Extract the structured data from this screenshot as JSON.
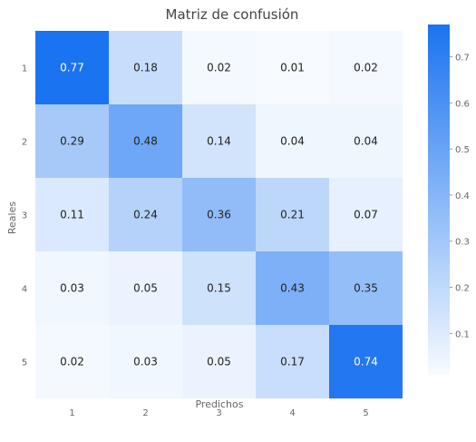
{
  "chart_data": {
    "type": "heatmap",
    "title": "Matriz de confusión",
    "xlabel": "Predichos",
    "ylabel": "Reales",
    "x_categories": [
      "1",
      "2",
      "3",
      "4",
      "5"
    ],
    "y_categories": [
      "1",
      "2",
      "3",
      "4",
      "5"
    ],
    "values": [
      [
        0.77,
        0.18,
        0.02,
        0.01,
        0.02
      ],
      [
        0.29,
        0.48,
        0.14,
        0.04,
        0.04
      ],
      [
        0.11,
        0.24,
        0.36,
        0.21,
        0.07
      ],
      [
        0.03,
        0.05,
        0.15,
        0.43,
        0.35
      ],
      [
        0.02,
        0.03,
        0.05,
        0.17,
        0.74
      ]
    ],
    "cell_labels": [
      [
        "0.77",
        "0.18",
        "0.02",
        "0.01",
        "0.02"
      ],
      [
        "0.29",
        "0.48",
        "0.14",
        "0.04",
        "0.04"
      ],
      [
        "0.11",
        "0.24",
        "0.36",
        "0.21",
        "0.07"
      ],
      [
        "0.03",
        "0.05",
        "0.15",
        "0.43",
        "0.35"
      ],
      [
        "0.02",
        "0.03",
        "0.05",
        "0.17",
        "0.74"
      ]
    ],
    "colorbar": {
      "vmin": 0.01,
      "vmax": 0.77,
      "ticks": [
        "0.1",
        "0.2",
        "0.3",
        "0.4",
        "0.5",
        "0.6",
        "0.7"
      ],
      "low_color": "#f7fbff",
      "high_color": "#1a73f0"
    },
    "grid": false
  }
}
